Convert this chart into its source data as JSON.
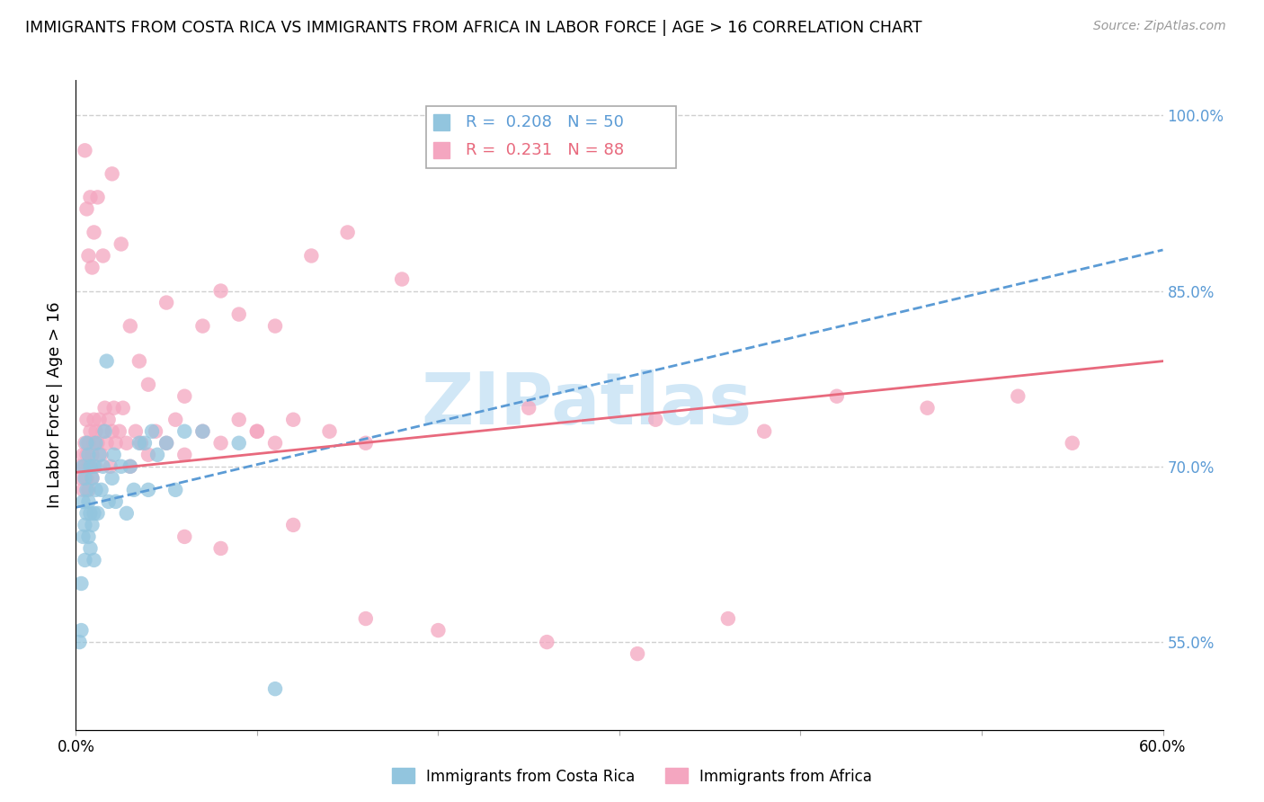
{
  "title": "IMMIGRANTS FROM COSTA RICA VS IMMIGRANTS FROM AFRICA IN LABOR FORCE | AGE > 16 CORRELATION CHART",
  "source": "Source: ZipAtlas.com",
  "ylabel": "In Labor Force | Age > 16",
  "xlim": [
    0.0,
    0.6
  ],
  "ylim": [
    0.475,
    1.03
  ],
  "xtick_positions": [
    0.0,
    0.1,
    0.2,
    0.3,
    0.4,
    0.5,
    0.6
  ],
  "xticklabels": [
    "0.0%",
    "",
    "",
    "",
    "",
    "",
    "60.0%"
  ],
  "ytick_positions": [
    0.55,
    0.7,
    0.85,
    1.0
  ],
  "yticklabels_right": [
    "55.0%",
    "70.0%",
    "85.0%",
    "100.0%"
  ],
  "blue_R": 0.208,
  "blue_N": 50,
  "pink_R": 0.231,
  "pink_N": 88,
  "blue_color": "#92c5de",
  "pink_color": "#f4a6c0",
  "blue_line_color": "#5b9bd5",
  "pink_line_color": "#e8697d",
  "right_axis_color": "#5b9bd5",
  "background_color": "#ffffff",
  "grid_color": "#d0d0d0",
  "watermark": "ZIPatlas",
  "watermark_color": "#cce5f6",
  "legend_label_blue": "Immigrants from Costa Rica",
  "legend_label_pink": "Immigrants from Africa",
  "blue_x": [
    0.002,
    0.003,
    0.003,
    0.004,
    0.004,
    0.004,
    0.005,
    0.005,
    0.005,
    0.006,
    0.006,
    0.006,
    0.007,
    0.007,
    0.007,
    0.008,
    0.008,
    0.008,
    0.009,
    0.009,
    0.01,
    0.01,
    0.01,
    0.011,
    0.011,
    0.012,
    0.013,
    0.014,
    0.015,
    0.016,
    0.017,
    0.018,
    0.02,
    0.021,
    0.022,
    0.025,
    0.028,
    0.03,
    0.032,
    0.035,
    0.038,
    0.04,
    0.042,
    0.045,
    0.05,
    0.055,
    0.06,
    0.07,
    0.09,
    0.11
  ],
  "blue_y": [
    0.55,
    0.56,
    0.6,
    0.64,
    0.67,
    0.7,
    0.62,
    0.65,
    0.69,
    0.66,
    0.68,
    0.72,
    0.64,
    0.67,
    0.71,
    0.63,
    0.66,
    0.7,
    0.65,
    0.69,
    0.62,
    0.66,
    0.7,
    0.68,
    0.72,
    0.66,
    0.71,
    0.68,
    0.7,
    0.73,
    0.79,
    0.67,
    0.69,
    0.71,
    0.67,
    0.7,
    0.66,
    0.7,
    0.68,
    0.72,
    0.72,
    0.68,
    0.73,
    0.71,
    0.72,
    0.68,
    0.73,
    0.73,
    0.72,
    0.51
  ],
  "pink_x": [
    0.002,
    0.003,
    0.004,
    0.004,
    0.005,
    0.005,
    0.006,
    0.006,
    0.006,
    0.007,
    0.007,
    0.007,
    0.008,
    0.008,
    0.009,
    0.009,
    0.01,
    0.01,
    0.011,
    0.011,
    0.012,
    0.013,
    0.014,
    0.015,
    0.016,
    0.017,
    0.018,
    0.019,
    0.02,
    0.021,
    0.022,
    0.024,
    0.026,
    0.028,
    0.03,
    0.033,
    0.036,
    0.04,
    0.044,
    0.05,
    0.055,
    0.06,
    0.07,
    0.08,
    0.09,
    0.1,
    0.11,
    0.12,
    0.14,
    0.16,
    0.005,
    0.006,
    0.007,
    0.008,
    0.009,
    0.01,
    0.012,
    0.015,
    0.02,
    0.025,
    0.03,
    0.035,
    0.04,
    0.05,
    0.06,
    0.07,
    0.08,
    0.09,
    0.11,
    0.13,
    0.15,
    0.18,
    0.25,
    0.32,
    0.38,
    0.42,
    0.47,
    0.52,
    0.55,
    0.1,
    0.06,
    0.08,
    0.12,
    0.16,
    0.2,
    0.26,
    0.31,
    0.36
  ],
  "pink_y": [
    0.7,
    0.69,
    0.71,
    0.68,
    0.72,
    0.7,
    0.69,
    0.71,
    0.74,
    0.7,
    0.72,
    0.68,
    0.7,
    0.73,
    0.71,
    0.69,
    0.72,
    0.74,
    0.7,
    0.73,
    0.72,
    0.74,
    0.71,
    0.73,
    0.75,
    0.72,
    0.74,
    0.7,
    0.73,
    0.75,
    0.72,
    0.73,
    0.75,
    0.72,
    0.7,
    0.73,
    0.72,
    0.71,
    0.73,
    0.72,
    0.74,
    0.71,
    0.73,
    0.72,
    0.74,
    0.73,
    0.72,
    0.74,
    0.73,
    0.72,
    0.97,
    0.92,
    0.88,
    0.93,
    0.87,
    0.9,
    0.93,
    0.88,
    0.95,
    0.89,
    0.82,
    0.79,
    0.77,
    0.84,
    0.76,
    0.82,
    0.85,
    0.83,
    0.82,
    0.88,
    0.9,
    0.86,
    0.75,
    0.74,
    0.73,
    0.76,
    0.75,
    0.76,
    0.72,
    0.73,
    0.64,
    0.63,
    0.65,
    0.57,
    0.56,
    0.55,
    0.54,
    0.57
  ]
}
